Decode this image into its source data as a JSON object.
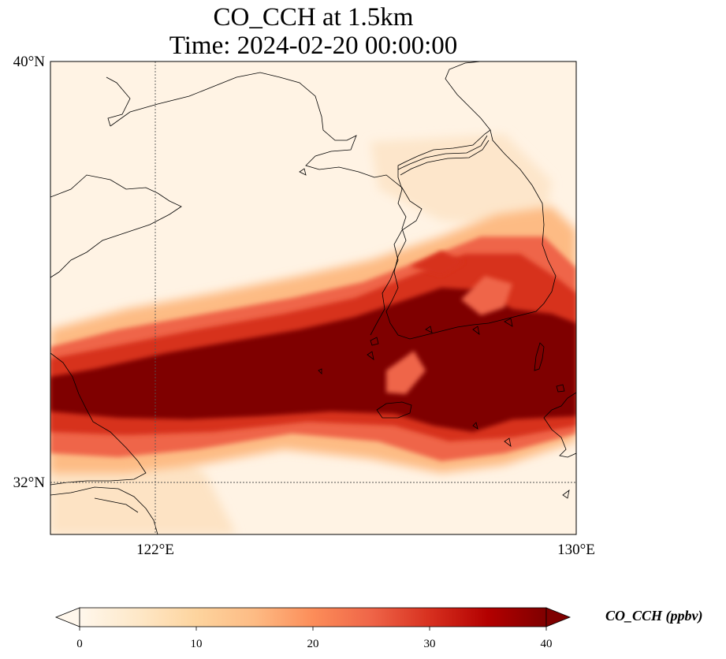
{
  "map": {
    "title_line1": "CO_CCH at 1.5km",
    "title_line2": "Time: 2024-02-20 00:00:00",
    "lat_ticks": [
      {
        "label": "40°N",
        "value": 40
      },
      {
        "label": "32°N",
        "value": 32
      }
    ],
    "lon_ticks": [
      {
        "label": "122°E",
        "value": 122
      },
      {
        "label": "130°E",
        "value": 130
      }
    ],
    "lon_range": [
      120,
      130
    ],
    "lat_range": [
      31,
      40
    ],
    "gridlines": "dotted at 122°E and 32°N"
  },
  "colorbar": {
    "label": "CO_CCH (ppbv)",
    "ticks": [
      "0",
      "10",
      "20",
      "30",
      "40"
    ],
    "range": [
      0,
      40
    ],
    "extend": "both",
    "colormap": "OrRd",
    "colors": [
      "#fff7ec",
      "#fee8c8",
      "#fdd49e",
      "#fdbb84",
      "#fc8d59",
      "#ef6548",
      "#d7301f",
      "#b30000",
      "#7f0000"
    ]
  }
}
